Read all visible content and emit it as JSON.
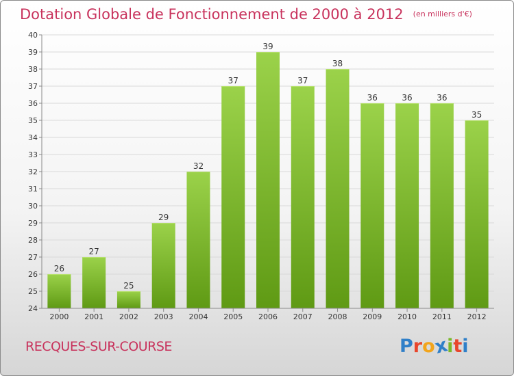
{
  "title": "Dotation Globale de Fonctionnement de 2000 à 2012",
  "title_note": "(en milliers d'€)",
  "place": "RECQUES-SUR-COURSE",
  "logo": {
    "letters": [
      "P",
      "r",
      "o",
      "x",
      "i",
      "t",
      "i"
    ],
    "colors": [
      "#2f7fc8",
      "#e8462c",
      "#f2a51c",
      "#2f7fc8",
      "#7ab828",
      "#e8462c",
      "#2f7fc8"
    ]
  },
  "colors": {
    "title": "#c8325c",
    "bar_top": "#9bd24a",
    "bar_bottom": "#5f9a14",
    "grid": "#d9d9d9",
    "axis": "#8a8a8a"
  },
  "chart_data": {
    "type": "bar",
    "categories": [
      "2000",
      "2001",
      "2002",
      "2003",
      "2004",
      "2005",
      "2006",
      "2007",
      "2008",
      "2009",
      "2010",
      "2011",
      "2012"
    ],
    "values": [
      26,
      27,
      25,
      29,
      32,
      37,
      39,
      37,
      38,
      36,
      36,
      36,
      35
    ],
    "ylim": [
      24,
      40
    ],
    "yticks": [
      24,
      25,
      26,
      27,
      28,
      29,
      30,
      31,
      32,
      33,
      34,
      35,
      36,
      37,
      38,
      39,
      40
    ],
    "grid": true,
    "data_labels": true
  }
}
